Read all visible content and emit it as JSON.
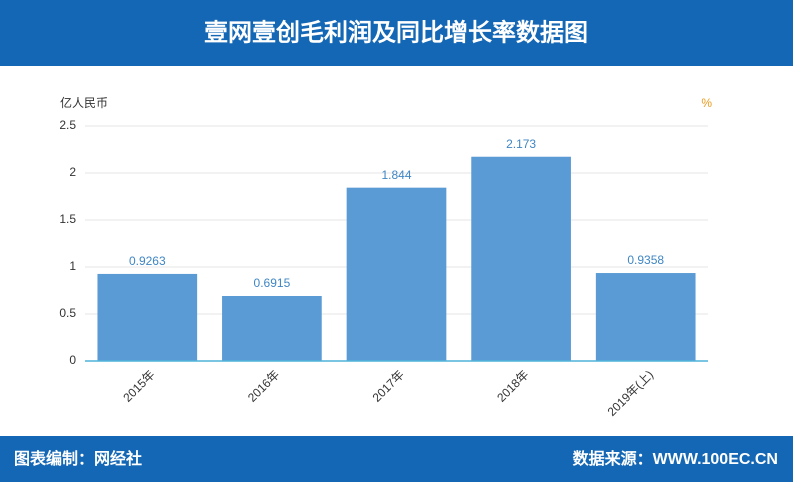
{
  "chart_data": {
    "type": "bar",
    "title": "壹网壹创毛利润及同比增长率数据图",
    "ylabel": "亿人民币",
    "y2label": "%",
    "categories": [
      "2015年",
      "2016年",
      "2017年",
      "2018年",
      "2019年(上)"
    ],
    "values": [
      0.9263,
      0.6915,
      1.844,
      2.173,
      0.9358
    ],
    "color": "#5b9bd5",
    "ylim": [
      0,
      2.5
    ],
    "yticks": [
      0,
      0.5,
      1,
      1.5,
      2,
      2.5
    ],
    "grid": true,
    "credit": "图表编制：网经社",
    "source": "数据来源：WWW.100EC.CN"
  }
}
